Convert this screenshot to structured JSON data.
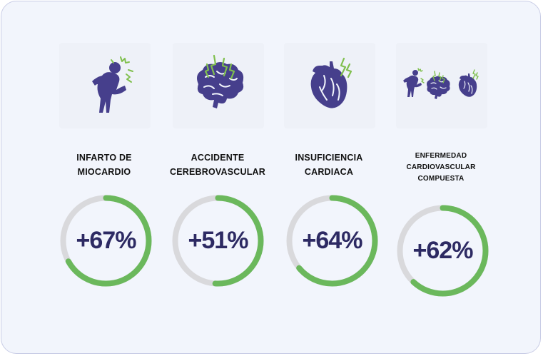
{
  "stats": [
    {
      "id": "infarto",
      "label_lines": [
        "INFARTO DE",
        "MIOCARDIO"
      ],
      "value": "+67%",
      "fraction": 0.67,
      "icon": "person-chest-pain-icon"
    },
    {
      "id": "accidente",
      "label_lines": [
        "ACCIDENTE",
        "CEREBROVASCULAR"
      ],
      "value": "+51%",
      "fraction": 0.51,
      "icon": "brain-lightning-icon"
    },
    {
      "id": "insuficiencia",
      "label_lines": [
        "INSUFICIENCIA",
        "CARDIACA"
      ],
      "value": "+64%",
      "fraction": 0.64,
      "icon": "heart-lightning-icon"
    },
    {
      "id": "compuesta",
      "label_lines": [
        "ENFERMEDAD",
        "CARDIOVASCULAR",
        "COMPUESTA"
      ],
      "value": "+62%",
      "fraction": 0.62,
      "icon": "combined-cardiovascular-icon"
    }
  ],
  "colors": {
    "accent_green": "#6bb85c",
    "track_gray": "#d9d9dc",
    "icon_purple": "#463f8c",
    "value_text": "#2d2a63",
    "background": "#f2f5fc",
    "border": "#c9cde6"
  }
}
